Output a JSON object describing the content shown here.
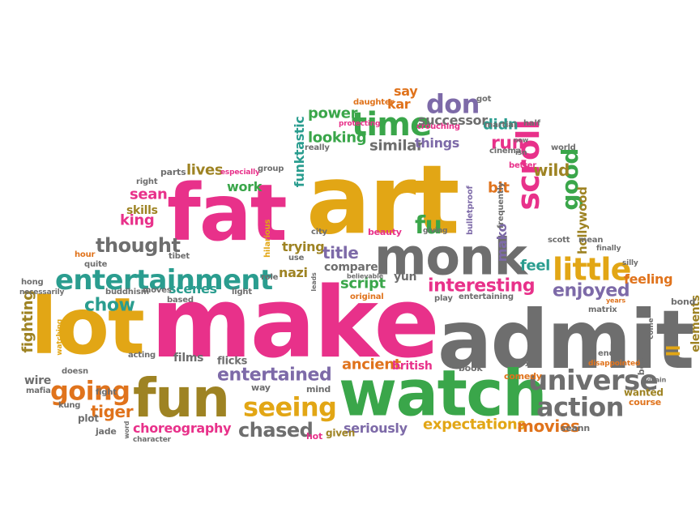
{
  "palette": {
    "pink": "#e8318a",
    "gold": "#e2a615",
    "gray": "#6e6e6e",
    "green": "#3aa64a",
    "teal": "#2a9d8f",
    "orange": "#e0731c",
    "olive": "#9e8323",
    "purple": "#7d6aa8"
  },
  "words": [
    {
      "text": "make",
      "color": "pink"
    },
    {
      "text": "art",
      "color": "gold"
    },
    {
      "text": "admit",
      "color": "gray"
    },
    {
      "text": "fat",
      "color": "pink"
    },
    {
      "text": "lot",
      "color": "gold"
    },
    {
      "text": "watch",
      "color": "green"
    },
    {
      "text": "fun",
      "color": "olive"
    },
    {
      "text": "monk",
      "color": "gray"
    },
    {
      "text": "entertainment",
      "color": "teal"
    },
    {
      "text": "time",
      "color": "green"
    },
    {
      "text": "scroll",
      "color": "pink"
    },
    {
      "text": "little",
      "color": "gold"
    },
    {
      "text": "universe",
      "color": "gray"
    },
    {
      "text": "action",
      "color": "gray"
    },
    {
      "text": "seeing",
      "color": "gold"
    },
    {
      "text": "going",
      "color": "orange"
    },
    {
      "text": "entertained",
      "color": "purple"
    },
    {
      "text": "chased",
      "color": "gray"
    },
    {
      "text": "don",
      "color": "purple"
    },
    {
      "text": "fu",
      "color": "green"
    },
    {
      "text": "good",
      "color": "green"
    },
    {
      "text": "thought",
      "color": "gray"
    },
    {
      "text": "enjoyed",
      "color": "purple"
    },
    {
      "text": "interesting",
      "color": "pink"
    },
    {
      "text": "fighting",
      "color": "olive"
    },
    {
      "text": "chow",
      "color": "teal"
    },
    {
      "text": "run",
      "color": "pink"
    },
    {
      "text": "expectations",
      "color": "gold"
    },
    {
      "text": "movies",
      "color": "orange"
    },
    {
      "text": "choreography",
      "color": "pink"
    },
    {
      "text": "tiger",
      "color": "orange"
    },
    {
      "text": "king",
      "color": "pink"
    },
    {
      "text": "sean",
      "color": "pink"
    },
    {
      "text": "skills",
      "color": "olive"
    },
    {
      "text": "lives",
      "color": "olive"
    },
    {
      "text": "work",
      "color": "green"
    },
    {
      "text": "funktastic",
      "color": "teal"
    },
    {
      "text": "power",
      "color": "green"
    },
    {
      "text": "looking",
      "color": "green"
    },
    {
      "text": "kar",
      "color": "orange"
    },
    {
      "text": "say",
      "color": "orange"
    },
    {
      "text": "successor",
      "color": "gray"
    },
    {
      "text": "didn",
      "color": "teal"
    },
    {
      "text": "similar",
      "color": "gray"
    },
    {
      "text": "things",
      "color": "purple"
    },
    {
      "text": "wild",
      "color": "olive"
    },
    {
      "text": "bit",
      "color": "orange"
    },
    {
      "text": "mako",
      "color": "purple"
    },
    {
      "text": "hollywood",
      "color": "olive"
    },
    {
      "text": "trying",
      "color": "olive"
    },
    {
      "text": "title",
      "color": "purple"
    },
    {
      "text": "nazi",
      "color": "olive"
    },
    {
      "text": "compare",
      "color": "gray"
    },
    {
      "text": "feel",
      "color": "teal"
    },
    {
      "text": "script",
      "color": "green"
    },
    {
      "text": "yun",
      "color": "gray"
    },
    {
      "text": "scenes",
      "color": "teal"
    },
    {
      "text": "feeling",
      "color": "orange"
    },
    {
      "text": "ancient",
      "color": "orange"
    },
    {
      "text": "british",
      "color": "pink"
    },
    {
      "text": "seriously",
      "color": "purple"
    },
    {
      "text": "films",
      "color": "gray"
    },
    {
      "text": "flicks",
      "color": "gray"
    },
    {
      "text": "ll",
      "color": "gold"
    },
    {
      "text": "elements",
      "color": "olive"
    },
    {
      "text": "wire",
      "color": "gray"
    },
    {
      "text": "plot",
      "color": "gray"
    },
    {
      "text": "jade",
      "color": "gray"
    },
    {
      "text": "given",
      "color": "olive"
    },
    {
      "text": "hot",
      "color": "pink"
    },
    {
      "text": "mind",
      "color": "gray"
    },
    {
      "text": "way",
      "color": "gray"
    },
    {
      "text": "book",
      "color": "gray"
    },
    {
      "text": "funny",
      "color": "gray"
    },
    {
      "text": "comedy",
      "color": "orange"
    },
    {
      "text": "wanted",
      "color": "olive"
    },
    {
      "text": "course",
      "color": "orange"
    },
    {
      "text": "end",
      "color": "gray"
    },
    {
      "text": "disappointed",
      "color": "orange"
    },
    {
      "text": "matrix",
      "color": "gray"
    },
    {
      "text": "bond",
      "color": "gray"
    },
    {
      "text": "best",
      "color": "gray"
    },
    {
      "text": "villain",
      "color": "gray"
    },
    {
      "text": "seann",
      "color": "gray"
    },
    {
      "text": "character",
      "color": "gray"
    },
    {
      "text": "word",
      "color": "gray"
    },
    {
      "text": "fight",
      "color": "gray"
    },
    {
      "text": "doesn",
      "color": "gray"
    },
    {
      "text": "kung",
      "color": "gray"
    },
    {
      "text": "mafia",
      "color": "gray"
    },
    {
      "text": "watching",
      "color": "gold"
    },
    {
      "text": "acting",
      "color": "gray"
    },
    {
      "text": "hong",
      "color": "gray"
    },
    {
      "text": "necessarily",
      "color": "gray"
    },
    {
      "text": "buddhism",
      "color": "gray"
    },
    {
      "text": "based",
      "color": "gray"
    },
    {
      "text": "moves",
      "color": "gray"
    },
    {
      "text": "tibet",
      "color": "gray"
    },
    {
      "text": "hour",
      "color": "orange"
    },
    {
      "text": "quite",
      "color": "gray"
    },
    {
      "text": "light",
      "color": "gray"
    },
    {
      "text": "role",
      "color": "gray"
    },
    {
      "text": "use",
      "color": "gray"
    },
    {
      "text": "hilarious",
      "color": "gold"
    },
    {
      "text": "city",
      "color": "gray"
    },
    {
      "text": "leads",
      "color": "gray"
    },
    {
      "text": "original",
      "color": "orange"
    },
    {
      "text": "believable",
      "color": "gray"
    },
    {
      "text": "beauty",
      "color": "pink"
    },
    {
      "text": "giving",
      "color": "gray"
    },
    {
      "text": "bulletproof",
      "color": "purple"
    },
    {
      "text": "frequently",
      "color": "gray"
    },
    {
      "text": "scott",
      "color": "gray"
    },
    {
      "text": "mean",
      "color": "gray"
    },
    {
      "text": "finally",
      "color": "gray"
    },
    {
      "text": "silly",
      "color": "gray"
    },
    {
      "text": "years",
      "color": "orange"
    },
    {
      "text": "play",
      "color": "gray"
    },
    {
      "text": "entertaining",
      "color": "gray"
    },
    {
      "text": "parts",
      "color": "gray"
    },
    {
      "text": "right",
      "color": "gray"
    },
    {
      "text": "especially",
      "color": "pink"
    },
    {
      "text": "group",
      "color": "gray"
    },
    {
      "text": "really",
      "color": "gray"
    },
    {
      "text": "daughter",
      "color": "orange"
    },
    {
      "text": "got",
      "color": "gray"
    },
    {
      "text": "protecting",
      "color": "pink"
    },
    {
      "text": "crouching",
      "color": "pink"
    },
    {
      "text": "martial",
      "color": "gray"
    },
    {
      "text": "half",
      "color": "gray"
    },
    {
      "text": "new",
      "color": "gray"
    },
    {
      "text": "isn",
      "color": "gray"
    },
    {
      "text": "world",
      "color": "gray"
    },
    {
      "text": "cinema",
      "color": "gray"
    },
    {
      "text": "better",
      "color": "pink"
    },
    {
      "text": "come",
      "color": "gray"
    }
  ]
}
